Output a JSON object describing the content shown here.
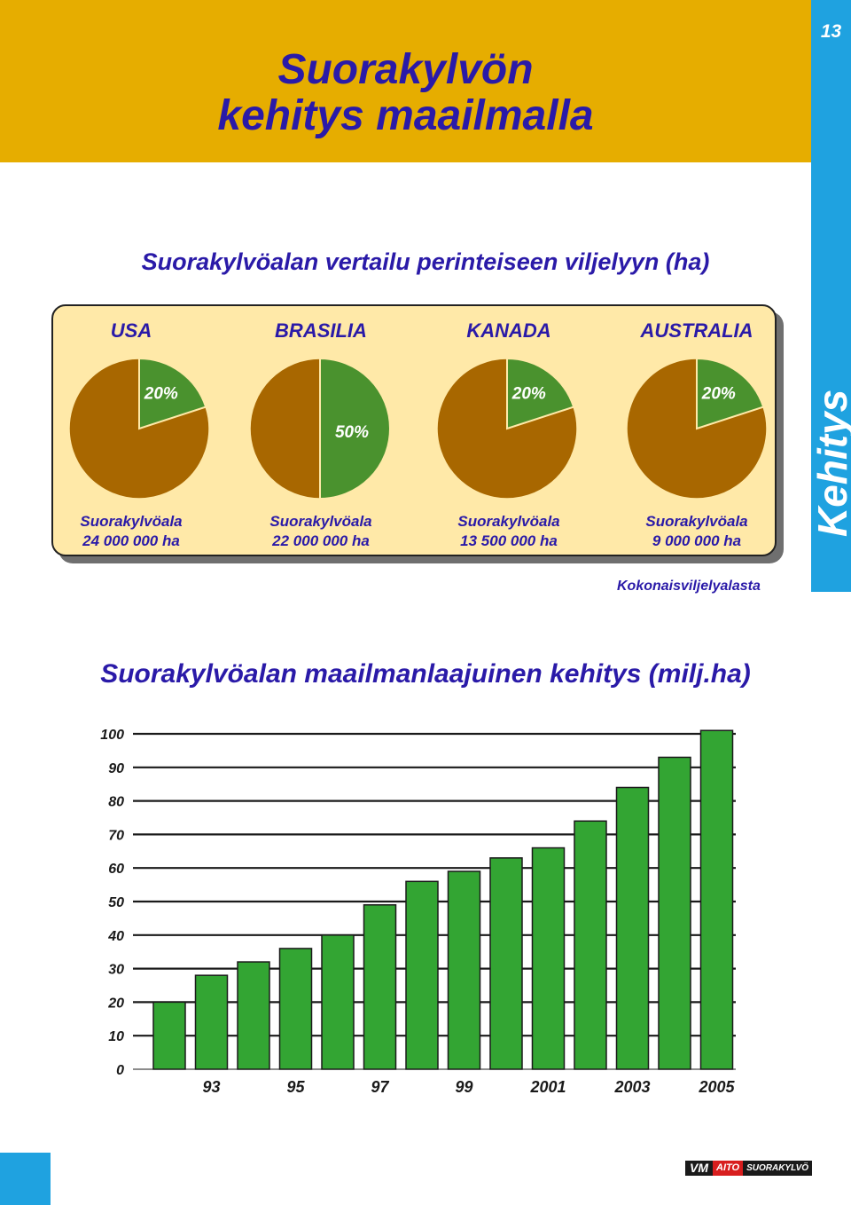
{
  "page": {
    "number": "13",
    "side_word": "Kehitys",
    "title_line1": "Suorakylvön",
    "title_line2": "kehitys maailmalla",
    "colors": {
      "header": "#e6ad00",
      "side": "#1fa2e0",
      "title": "#2a1aa8",
      "panel": "#ffe9a8"
    }
  },
  "comparison": {
    "title": "Suorakylvöalan vertailu perinteiseen viljelyyn (ha)",
    "footnote": "Kokonaisviljelyalasta",
    "colors": {
      "share": "#4a922e",
      "rest": "#a86700"
    },
    "countries": [
      {
        "name": "USA",
        "share_percent": 20,
        "share_label": "20%",
        "area_label": "Suorakylvöala",
        "area_value": "24 000 000 ha"
      },
      {
        "name": "BRASILIA",
        "share_percent": 50,
        "share_label": "50%",
        "area_label": "Suorakylvöala",
        "area_value": "22 000 000 ha"
      },
      {
        "name": "KANADA",
        "share_percent": 20,
        "share_label": "20%",
        "area_label": "Suorakylvöala",
        "area_value": "13 500 000 ha"
      },
      {
        "name": "AUSTRALIA",
        "share_percent": 20,
        "share_label": "20%",
        "area_label": "Suorakylvöala",
        "area_value": "9 000 000 ha"
      }
    ]
  },
  "chart_data": {
    "type": "bar",
    "title": "Suorakylvöalan maailmanlaajuinen kehitys (milj.ha)",
    "xlabel": "",
    "ylabel": "",
    "ylim": [
      0,
      100
    ],
    "y_ticks": [
      0,
      10,
      20,
      30,
      40,
      50,
      60,
      70,
      80,
      90,
      100
    ],
    "x_tick_labels": [
      "93",
      "95",
      "97",
      "99",
      "2001",
      "2003",
      "2005"
    ],
    "categories": [
      "1992",
      "1993",
      "1994",
      "1995",
      "1996",
      "1997",
      "1998",
      "1999",
      "2000",
      "2001",
      "2002",
      "2003",
      "2004",
      "2005"
    ],
    "values": [
      20,
      28,
      32,
      36,
      40,
      49,
      56,
      59,
      63,
      66,
      74,
      84,
      93,
      101
    ],
    "grid": true,
    "bar_color": "#33a533"
  },
  "logo": {
    "vm": "VM",
    "aito": "AITO",
    "suora": "SUORAKYLVÖ"
  }
}
